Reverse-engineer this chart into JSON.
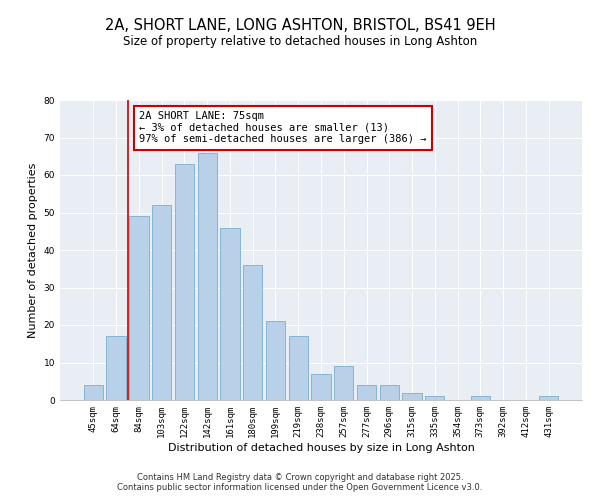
{
  "title": "2A, SHORT LANE, LONG ASHTON, BRISTOL, BS41 9EH",
  "subtitle": "Size of property relative to detached houses in Long Ashton",
  "xlabel": "Distribution of detached houses by size in Long Ashton",
  "ylabel": "Number of detached properties",
  "categories": [
    "45sqm",
    "64sqm",
    "84sqm",
    "103sqm",
    "122sqm",
    "142sqm",
    "161sqm",
    "180sqm",
    "199sqm",
    "219sqm",
    "238sqm",
    "257sqm",
    "277sqm",
    "296sqm",
    "315sqm",
    "335sqm",
    "354sqm",
    "373sqm",
    "392sqm",
    "412sqm",
    "431sqm"
  ],
  "values": [
    4,
    17,
    49,
    52,
    63,
    66,
    46,
    36,
    21,
    17,
    7,
    9,
    4,
    4,
    2,
    1,
    0,
    1,
    0,
    0,
    1
  ],
  "bar_color": "#b8d0e8",
  "bar_edge_color": "#7aadd0",
  "vline_color": "#cc0000",
  "ylim": [
    0,
    80
  ],
  "yticks": [
    0,
    10,
    20,
    30,
    40,
    50,
    60,
    70,
    80
  ],
  "annotation_title": "2A SHORT LANE: 75sqm",
  "annotation_line1": "← 3% of detached houses are smaller (13)",
  "annotation_line2": "97% of semi-detached houses are larger (386) →",
  "footer1": "Contains HM Land Registry data © Crown copyright and database right 2025.",
  "footer2": "Contains public sector information licensed under the Open Government Licence v3.0.",
  "background_color": "#e8eef4",
  "title_fontsize": 10.5,
  "subtitle_fontsize": 8.5,
  "axis_label_fontsize": 8,
  "tick_fontsize": 6.5,
  "annotation_fontsize": 7.5,
  "footer_fontsize": 6
}
